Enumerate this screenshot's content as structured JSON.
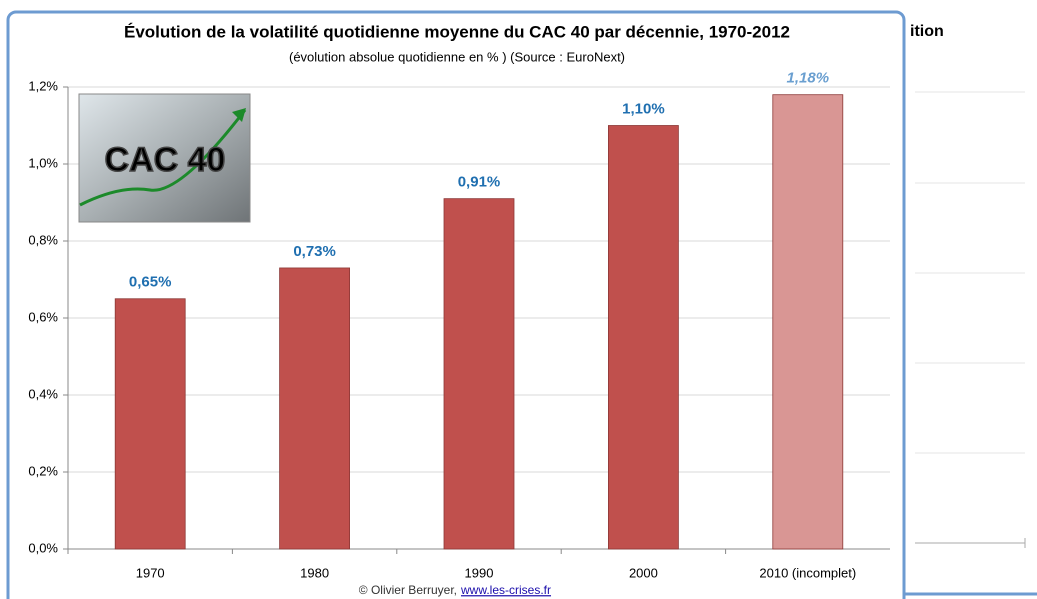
{
  "chart_data": {
    "type": "bar",
    "title": "Évolution de la volatilité quotidienne moyenne du CAC 40 par décennie, 1970-2012",
    "subtitle": "(évolution absolue quotidienne en % ) (Source : EuroNext)",
    "categories": [
      "1970",
      "1980",
      "1990",
      "2000",
      "2010 (incomplet)"
    ],
    "values": [
      0.65,
      0.73,
      0.91,
      1.1,
      1.18
    ],
    "value_labels": [
      "0,65%",
      "0,73%",
      "0,91%",
      "1,10%",
      "1,18%"
    ],
    "colors": [
      "#c0504d",
      "#c0504d",
      "#c0504d",
      "#c0504d",
      "#d99694"
    ],
    "label_colors": [
      "#1f6fb0",
      "#1f6fb0",
      "#1f6fb0",
      "#1f6fb0",
      "#6a9fd0"
    ],
    "ylim": [
      0,
      1.2
    ],
    "yticks": [
      {
        "value": 0,
        "label": "0,0%"
      },
      {
        "value": 0.2,
        "label": "0,2%"
      },
      {
        "value": 0.4,
        "label": "0,4%"
      },
      {
        "value": 0.6,
        "label": "0,6%"
      },
      {
        "value": 0.8,
        "label": "0,8%"
      },
      {
        "value": 1.0,
        "label": "1,0%"
      },
      {
        "value": 1.2,
        "label": "1,2%"
      }
    ],
    "grid": true,
    "inset_label": "CAC 40",
    "credit": "© Olivier Berruyer,",
    "credit_link": "www.les-crises.fr",
    "background_text": "ition"
  }
}
